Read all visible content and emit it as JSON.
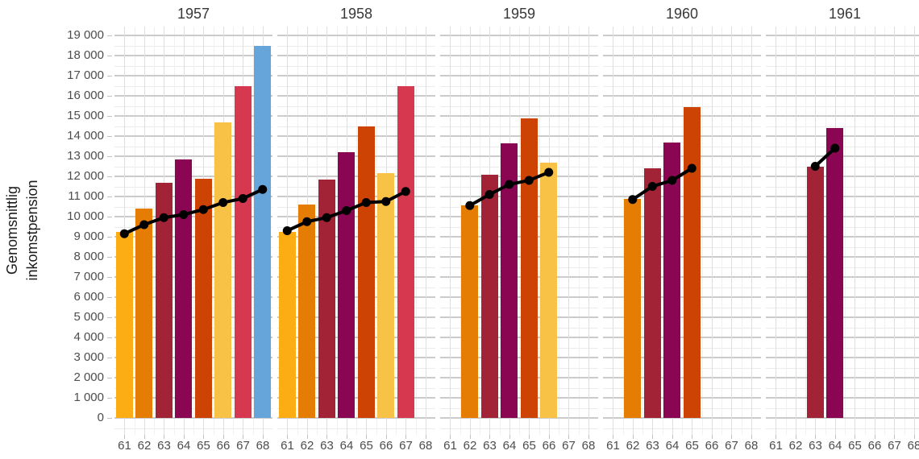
{
  "figure": {
    "y_axis_title_line1": "Genomsnittlig",
    "y_axis_title_line2": "inkomstpension"
  },
  "chart_data": {
    "type": "bar",
    "title": "",
    "ylabel": "Genomsnittlig inkomstpension",
    "xlabel": "",
    "facet_labels": [
      "1957",
      "1958",
      "1959",
      "1960",
      "1961"
    ],
    "x_categories": [
      "61",
      "62",
      "63",
      "64",
      "65",
      "66",
      "67",
      "68"
    ],
    "ylim": [
      0,
      19000
    ],
    "grid": true,
    "legend": "none",
    "y_ticks": [
      {
        "value": 0,
        "label": "0"
      },
      {
        "value": 1000,
        "label": "1 000"
      },
      {
        "value": 2000,
        "label": "2 000"
      },
      {
        "value": 3000,
        "label": "3 000"
      },
      {
        "value": 4000,
        "label": "4 000"
      },
      {
        "value": 5000,
        "label": "5 000"
      },
      {
        "value": 6000,
        "label": "6 000"
      },
      {
        "value": 7000,
        "label": "7 000"
      },
      {
        "value": 8000,
        "label": "8 000"
      },
      {
        "value": 9000,
        "label": "9 000"
      },
      {
        "value": 10000,
        "label": "10 000"
      },
      {
        "value": 11000,
        "label": "11 000"
      },
      {
        "value": 12000,
        "label": "12 000"
      },
      {
        "value": 13000,
        "label": "13 000"
      },
      {
        "value": 14000,
        "label": "14 000"
      },
      {
        "value": 15000,
        "label": "15 000"
      },
      {
        "value": 16000,
        "label": "16 000"
      },
      {
        "value": 17000,
        "label": "17 000"
      },
      {
        "value": 18000,
        "label": "18 000"
      },
      {
        "value": 19000,
        "label": "19 000"
      }
    ],
    "age_colors": {
      "61": "#FCAD13",
      "62": "#E57D04",
      "63": "#A32336",
      "64": "#8A0653",
      "65": "#CC4303",
      "66": "#F7C246",
      "67": "#D63850",
      "68": "#65A5D9"
    },
    "line_color": "#000000",
    "facets": [
      {
        "label": "1957",
        "bars": [
          {
            "x": "61",
            "value": 9250
          },
          {
            "x": "62",
            "value": 10400
          },
          {
            "x": "63",
            "value": 11700
          },
          {
            "x": "64",
            "value": 12850
          },
          {
            "x": "65",
            "value": 11900
          },
          {
            "x": "66",
            "value": 14700
          },
          {
            "x": "67",
            "value": 16500
          },
          {
            "x": "68",
            "value": 18500
          }
        ],
        "line": [
          {
            "x": "61",
            "value": 9150
          },
          {
            "x": "62",
            "value": 9600
          },
          {
            "x": "63",
            "value": 9950
          },
          {
            "x": "64",
            "value": 10100
          },
          {
            "x": "65",
            "value": 10350
          },
          {
            "x": "66",
            "value": 10700
          },
          {
            "x": "67",
            "value": 10900
          },
          {
            "x": "68",
            "value": 11350
          }
        ]
      },
      {
        "label": "1958",
        "bars": [
          {
            "x": "61",
            "value": 9250
          },
          {
            "x": "62",
            "value": 10600
          },
          {
            "x": "63",
            "value": 11850
          },
          {
            "x": "64",
            "value": 13200
          },
          {
            "x": "65",
            "value": 14500
          },
          {
            "x": "66",
            "value": 12150
          },
          {
            "x": "67",
            "value": 16500
          }
        ],
        "line": [
          {
            "x": "61",
            "value": 9300
          },
          {
            "x": "62",
            "value": 9750
          },
          {
            "x": "63",
            "value": 9950
          },
          {
            "x": "64",
            "value": 10300
          },
          {
            "x": "65",
            "value": 10700
          },
          {
            "x": "66",
            "value": 10750
          },
          {
            "x": "67",
            "value": 11250
          }
        ]
      },
      {
        "label": "1959",
        "bars": [
          {
            "x": "62",
            "value": 10550
          },
          {
            "x": "63",
            "value": 12100
          },
          {
            "x": "64",
            "value": 13650
          },
          {
            "x": "65",
            "value": 14900
          },
          {
            "x": "66",
            "value": 12700
          }
        ],
        "line": [
          {
            "x": "62",
            "value": 10550
          },
          {
            "x": "63",
            "value": 11100
          },
          {
            "x": "64",
            "value": 11600
          },
          {
            "x": "65",
            "value": 11800
          },
          {
            "x": "66",
            "value": 12200
          }
        ]
      },
      {
        "label": "1960",
        "bars": [
          {
            "x": "62",
            "value": 10900
          },
          {
            "x": "63",
            "value": 12400
          },
          {
            "x": "64",
            "value": 13700
          },
          {
            "x": "65",
            "value": 15450
          }
        ],
        "line": [
          {
            "x": "62",
            "value": 10850
          },
          {
            "x": "63",
            "value": 11500
          },
          {
            "x": "64",
            "value": 11800
          },
          {
            "x": "65",
            "value": 12400
          }
        ]
      },
      {
        "label": "1961",
        "bars": [
          {
            "x": "63",
            "value": 12500
          },
          {
            "x": "64",
            "value": 14400
          }
        ],
        "line": [
          {
            "x": "63",
            "value": 12500
          },
          {
            "x": "64",
            "value": 13400
          }
        ]
      }
    ]
  }
}
